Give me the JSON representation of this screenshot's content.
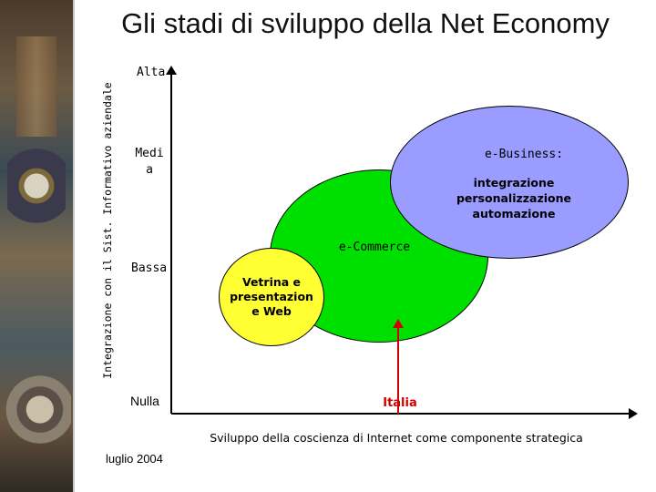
{
  "title": "Gli stadi di sviluppo della Net Economy",
  "y_axis": {
    "label": "Integrazione con il Sist. Informativo aziendale",
    "levels": [
      "Alta",
      "Medi a",
      "Bassa",
      "Nulla"
    ]
  },
  "x_axis": {
    "label": "Sviluppo della coscienza di Internet come componente strategica"
  },
  "stages": {
    "vetrina": "Vetrina e presentazion e Web",
    "ecommerce": "e-Commerce",
    "ebusiness": {
      "title": "e-Business:",
      "items": [
        "integrazione",
        "personalizzazione",
        "automazione"
      ]
    }
  },
  "marker": {
    "label": "Italia",
    "color": "#d00000"
  },
  "colors": {
    "vetrina": "#ffff33",
    "ecommerce": "#00e000",
    "ebusiness": "#9a9cff"
  },
  "footer": {
    "date": "luglio 2004"
  }
}
